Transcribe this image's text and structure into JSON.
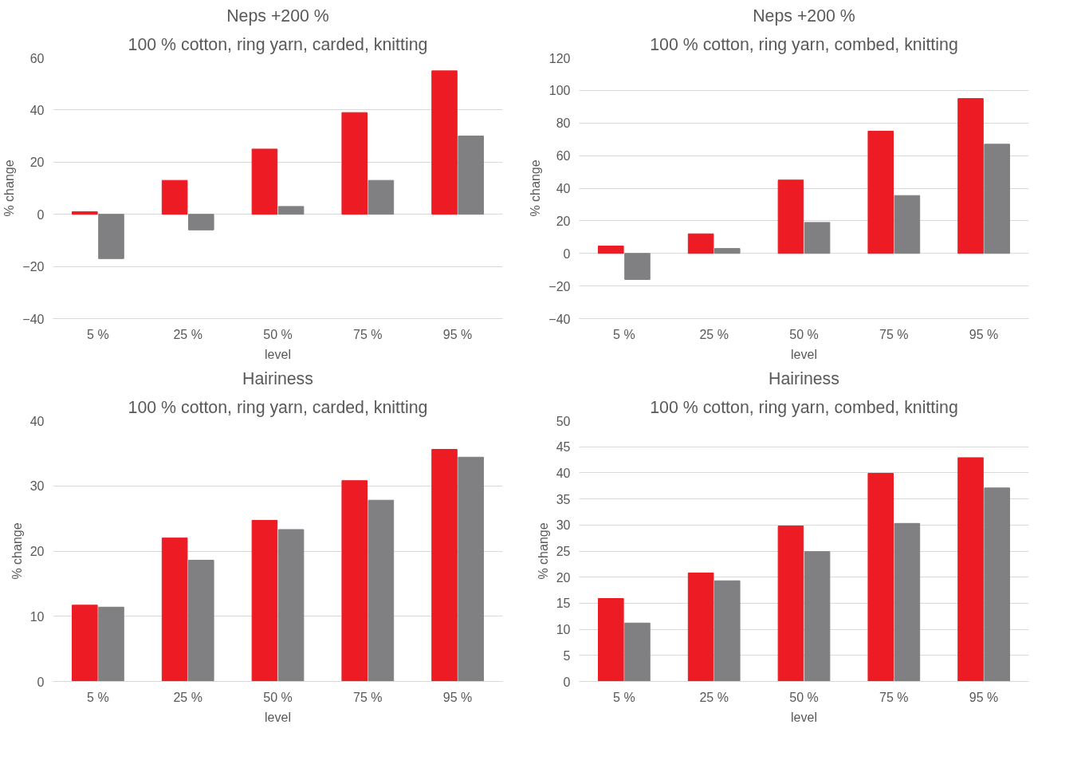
{
  "chart_data": [
    {
      "type": "bar",
      "title": "Neps +200 %",
      "subtitle": "100 % cotton, ring yarn, carded, knitting",
      "xlabel": "level",
      "ylabel": "% change",
      "categories": [
        "5 %",
        "25 %",
        "50 %",
        "75 %",
        "95 %"
      ],
      "series": [
        {
          "color": "#ed1c24",
          "values": [
            1,
            13,
            25,
            39,
            55
          ]
        },
        {
          "color": "#808083",
          "values": [
            -17,
            -6,
            3,
            13,
            30
          ]
        }
      ],
      "ylim": [
        -40,
        60
      ],
      "yticks": [
        -40,
        -20,
        0,
        20,
        40,
        60
      ],
      "grid": "y"
    },
    {
      "type": "bar",
      "title": "Neps +200 %",
      "subtitle": "100 % cotton, ring yarn, combed, knitting",
      "xlabel": "level",
      "ylabel": "% change",
      "categories": [
        "5 %",
        "25 %",
        "50 %",
        "75 %",
        "95 %"
      ],
      "series": [
        {
          "color": "#ed1c24",
          "values": [
            4.5,
            12,
            45,
            75,
            95
          ]
        },
        {
          "color": "#808083",
          "values": [
            -16,
            3,
            19,
            35.5,
            67
          ]
        }
      ],
      "ylim": [
        -40,
        120
      ],
      "yticks": [
        -40,
        -20,
        0,
        20,
        40,
        60,
        80,
        100,
        120
      ],
      "grid": "y"
    },
    {
      "type": "bar",
      "title": "Hairiness",
      "subtitle": "100 % cotton, ring yarn, carded, knitting",
      "xlabel": "level",
      "ylabel": "% change",
      "categories": [
        "5 %",
        "25 %",
        "50 %",
        "75 %",
        "95 %"
      ],
      "series": [
        {
          "color": "#ed1c24",
          "values": [
            11.7,
            22,
            24.7,
            30.8,
            35.6
          ]
        },
        {
          "color": "#808083",
          "values": [
            11.4,
            18.6,
            23.3,
            27.8,
            34.4
          ]
        }
      ],
      "ylim": [
        0,
        40
      ],
      "yticks": [
        0,
        10,
        20,
        30,
        40
      ],
      "grid": "y"
    },
    {
      "type": "bar",
      "title": "Hairiness",
      "subtitle": "100 % cotton, ring yarn, combed, knitting",
      "xlabel": "level",
      "ylabel": "% change",
      "categories": [
        "5 %",
        "25 %",
        "50 %",
        "75 %",
        "95 %"
      ],
      "series": [
        {
          "color": "#ed1c24",
          "values": [
            15.9,
            20.8,
            29.8,
            39.9,
            42.9
          ]
        },
        {
          "color": "#808083",
          "values": [
            11.2,
            19.3,
            24.9,
            30.3,
            37.1
          ]
        }
      ],
      "ylim": [
        0,
        50
      ],
      "yticks": [
        0,
        5,
        10,
        15,
        20,
        25,
        30,
        35,
        40,
        45,
        50
      ],
      "grid": "y"
    }
  ]
}
